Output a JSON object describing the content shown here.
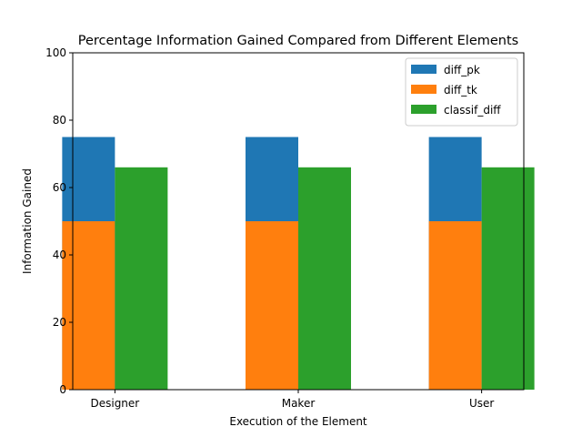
{
  "chart_data": {
    "type": "bar",
    "title": "Percentage Information Gained Compared from Different Elements",
    "xlabel": "Execution of the Element",
    "ylabel": "Information Gained",
    "categories": [
      "Designer",
      "Maker",
      "User"
    ],
    "ylim": [
      0,
      100
    ],
    "yticks": [
      0,
      20,
      40,
      60,
      80,
      100
    ],
    "grid": false,
    "legend_position": "top-right",
    "series": [
      {
        "name": "diff_pk",
        "values": [
          75,
          75,
          75
        ],
        "color": "#1f77b4",
        "slot": 0
      },
      {
        "name": "diff_tk",
        "values": [
          50,
          50,
          50
        ],
        "color": "#ff7f0e",
        "slot": 0
      },
      {
        "name": "classif_diff",
        "values": [
          66,
          66,
          66
        ],
        "color": "#2ca02c",
        "slot": 1
      }
    ]
  }
}
